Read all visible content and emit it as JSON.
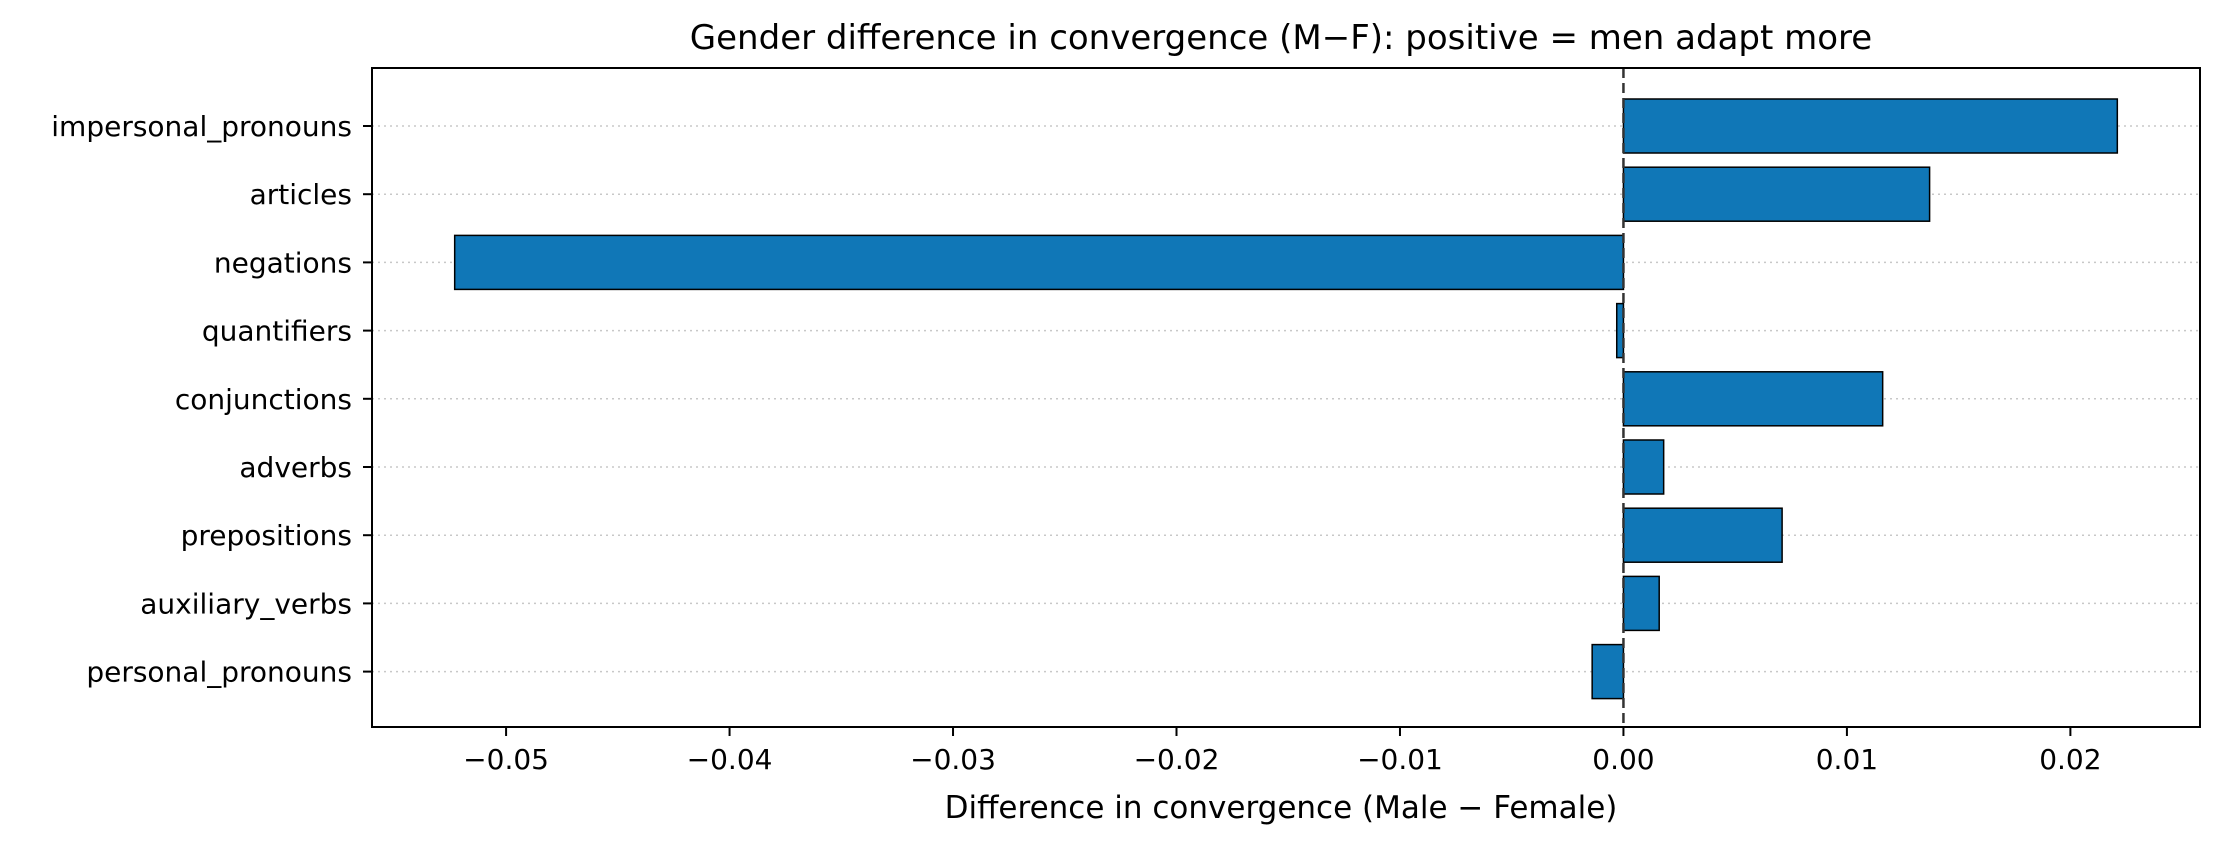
{
  "chart_data": {
    "type": "bar",
    "orientation": "horizontal",
    "title": "Gender difference in convergence (M−F): positive = men adapt more",
    "xlabel": "Difference in convergence (Male − Female)",
    "ylabel": "",
    "categories": [
      "impersonal_pronouns",
      "articles",
      "negations",
      "quantifiers",
      "conjunctions",
      "adverbs",
      "prepositions",
      "auxiliary_verbs",
      "personal_pronouns"
    ],
    "values": [
      0.0221,
      0.0137,
      -0.0523,
      -0.0003,
      0.0116,
      0.0018,
      0.0071,
      0.0016,
      -0.0014
    ],
    "xlim": [
      -0.056,
      0.0258
    ],
    "xticks": [
      -0.05,
      -0.04,
      -0.03,
      -0.02,
      -0.01,
      0.0,
      0.01,
      0.02
    ],
    "xtick_labels": [
      "−0.05",
      "−0.04",
      "−0.03",
      "−0.02",
      "−0.01",
      "0.00",
      "0.01",
      "0.02"
    ],
    "reference_line": 0.0,
    "grid": "y-dotted",
    "bar_color": "#1077b7",
    "edge_color": "#000000"
  }
}
